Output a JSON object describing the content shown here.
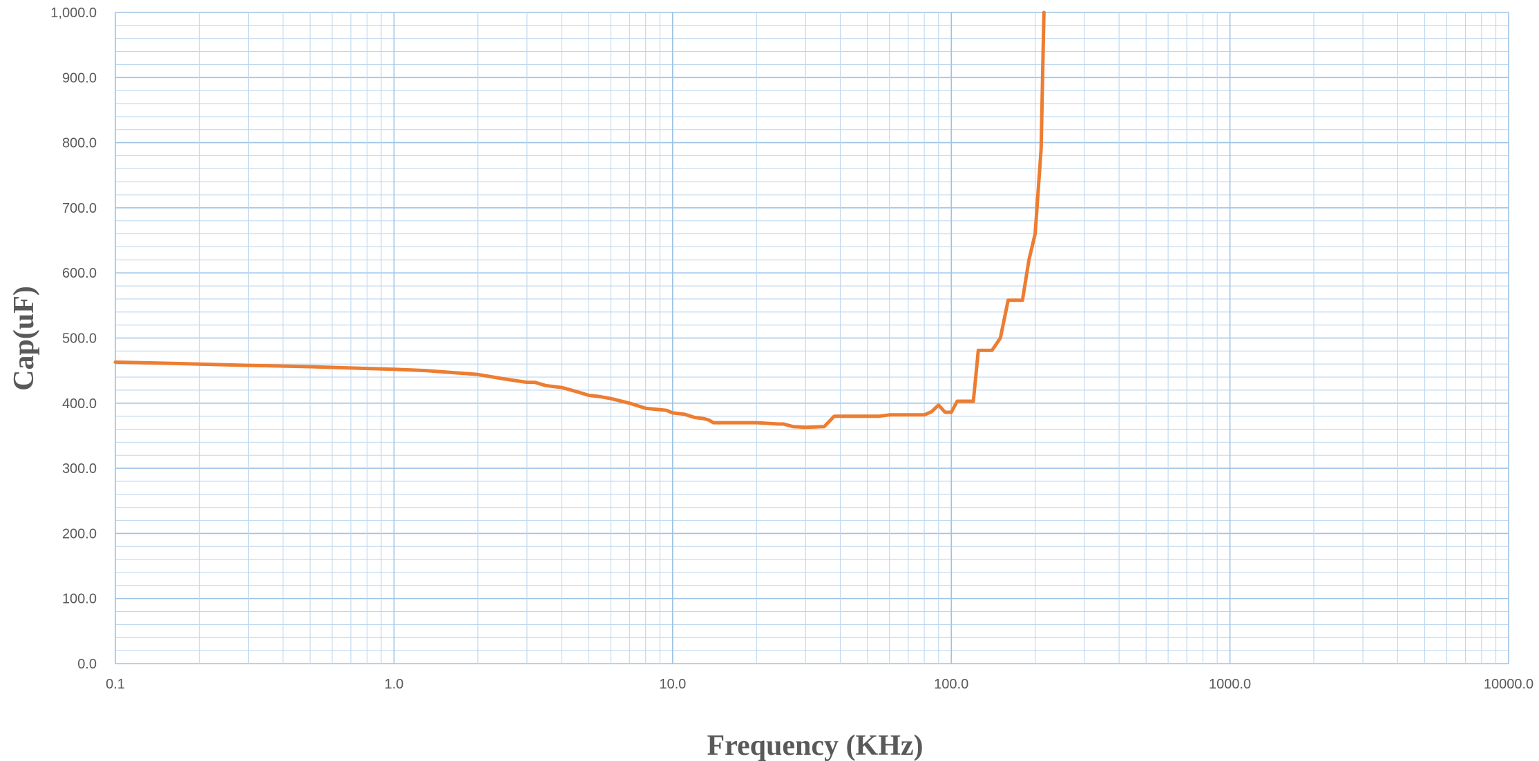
{
  "colors": {
    "series": "#ed7d31",
    "major_grid": "#9dc3e6",
    "minor_grid": "#bdd7ee",
    "text": "#595959"
  },
  "chart_data": {
    "type": "line",
    "title": "",
    "xlabel": "Frequency (KHz)",
    "ylabel": "Cap(uF)",
    "xscale": "log",
    "xlim": [
      0.1,
      10000
    ],
    "ylim": [
      0,
      1000
    ],
    "grid": true,
    "x_tick_labels": [
      "0.1",
      "1.0",
      "10.0",
      "100.0",
      "1000.0",
      "10000.0"
    ],
    "y_tick_labels": [
      "0.0",
      "100.0",
      "200.0",
      "300.0",
      "400.0",
      "500.0",
      "600.0",
      "700.0",
      "800.0",
      "900.0",
      "1,000.0"
    ],
    "series": [
      {
        "x": [
          0.1,
          0.2,
          0.3,
          0.5,
          0.7,
          1.0,
          1.3,
          1.5,
          2.0,
          2.5,
          3.0,
          3.2,
          3.5,
          4.0,
          4.5,
          5.0,
          5.5,
          6.0,
          7.0,
          8.0,
          9.0,
          9.5,
          10.0,
          11.0,
          12.0,
          13.0,
          13.5,
          14.0,
          20.0,
          24.0,
          25.0,
          27.0,
          30.0,
          35.0,
          38.0,
          40.0,
          55.0,
          60.0,
          80.0,
          85.0,
          90.0,
          95.0,
          100.0,
          105.0,
          110.0,
          120.0,
          125.0,
          140.0,
          150.0,
          160.0,
          180.0,
          190.0,
          200.0,
          210.0,
          215.0
        ],
        "values": [
          463,
          460,
          458,
          456,
          454,
          452,
          450,
          448,
          444,
          437,
          432,
          432,
          427,
          424,
          418,
          412,
          410,
          407,
          400,
          392,
          390,
          389,
          385,
          383,
          378,
          376,
          374,
          370,
          370,
          368,
          368,
          364,
          363,
          364,
          380,
          380,
          380,
          382,
          382,
          387,
          397,
          386,
          386,
          403,
          403,
          403,
          481,
          481,
          500,
          558,
          558,
          620,
          660,
          790,
          1000
        ]
      }
    ]
  }
}
